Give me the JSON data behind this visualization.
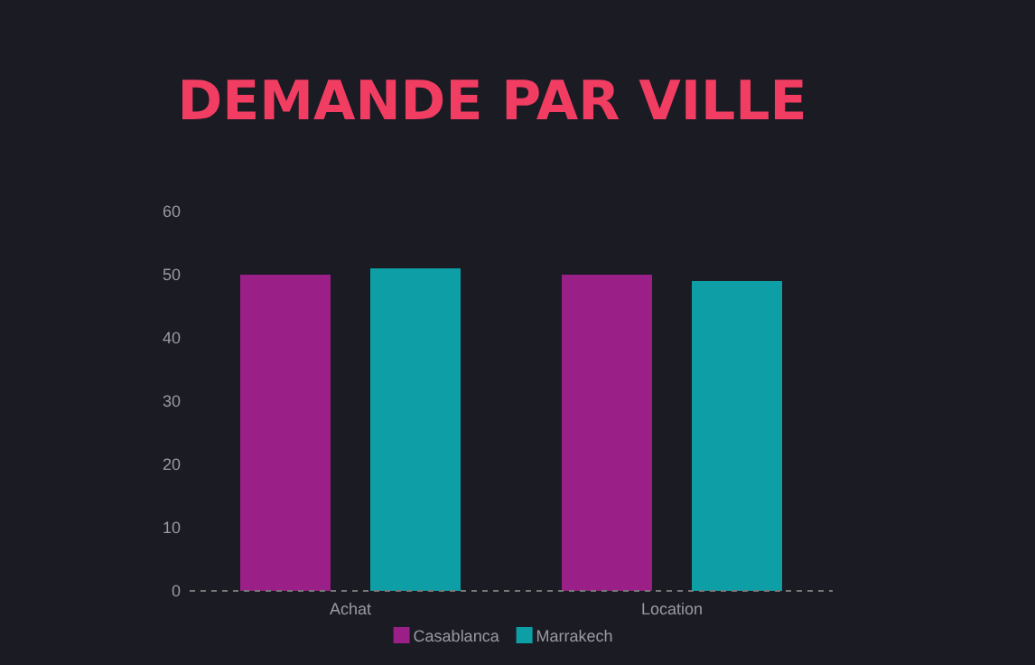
{
  "chart_data": {
    "type": "bar",
    "title": "DEMANDE PAR VILLE",
    "categories": [
      "Achat",
      "Location"
    ],
    "series": [
      {
        "name": "Casablanca",
        "color": "#9a1f87",
        "values": [
          50,
          50
        ]
      },
      {
        "name": "Marrakech",
        "color": "#0e9ea6",
        "values": [
          51,
          49
        ]
      }
    ],
    "ylim": [
      0,
      60
    ],
    "yticks": [
      0,
      10,
      20,
      30,
      40,
      50,
      60
    ],
    "grid": false,
    "legend": "bottom"
  }
}
